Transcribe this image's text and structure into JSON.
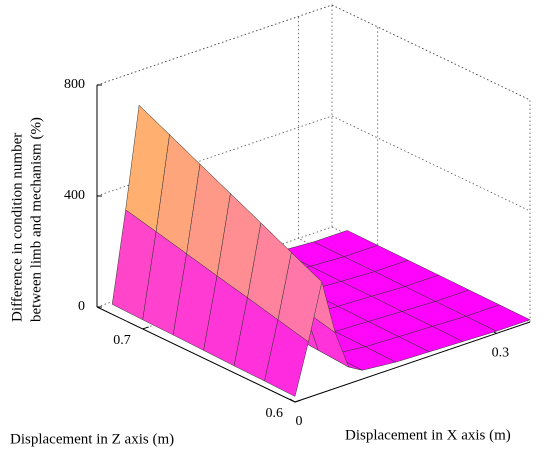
{
  "chart_data": {
    "type": "surface",
    "xlabel": "Displacement in X axis (m)",
    "ylabel": "Displacement in Z axis (m)",
    "zlabel": [
      "Difference in condition number",
      "between limb and mechanism (%)"
    ],
    "x": [
      0,
      0.02,
      0.04,
      0.06,
      0.08,
      0.1,
      0.15,
      0.2,
      0.25,
      0.3,
      0.35
    ],
    "y": [
      0.6,
      0.62,
      0.64,
      0.66,
      0.68,
      0.7,
      0.72
    ],
    "values": [
      [
        20,
        200,
        400,
        200,
        60,
        32,
        20,
        16,
        12,
        8,
        8
      ],
      [
        23,
        227,
        453,
        227,
        68,
        36,
        23,
        18,
        14,
        9,
        9
      ],
      [
        25,
        254,
        507,
        254,
        76,
        41,
        25,
        20,
        15,
        10,
        10
      ],
      [
        28,
        280,
        560,
        280,
        84,
        45,
        28,
        22,
        17,
        11,
        11
      ],
      [
        31,
        307,
        613,
        307,
        92,
        49,
        31,
        25,
        18,
        12,
        12
      ],
      [
        33,
        334,
        667,
        334,
        100,
        53,
        33,
        27,
        20,
        13,
        13
      ],
      [
        36,
        360,
        720,
        360,
        108,
        58,
        36,
        29,
        22,
        14,
        14
      ]
    ],
    "xlim": [
      0,
      0.35
    ],
    "xticks": [
      0,
      0.3
    ],
    "ylim": [
      0.6,
      0.73
    ],
    "yticks": [
      0.6,
      0.7
    ],
    "zlim": [
      0,
      800
    ],
    "zticks": [
      0,
      400,
      800
    ],
    "colormap": [
      "#ff00ff",
      "#ff80a0",
      "#ffe040"
    ],
    "grid": true
  }
}
